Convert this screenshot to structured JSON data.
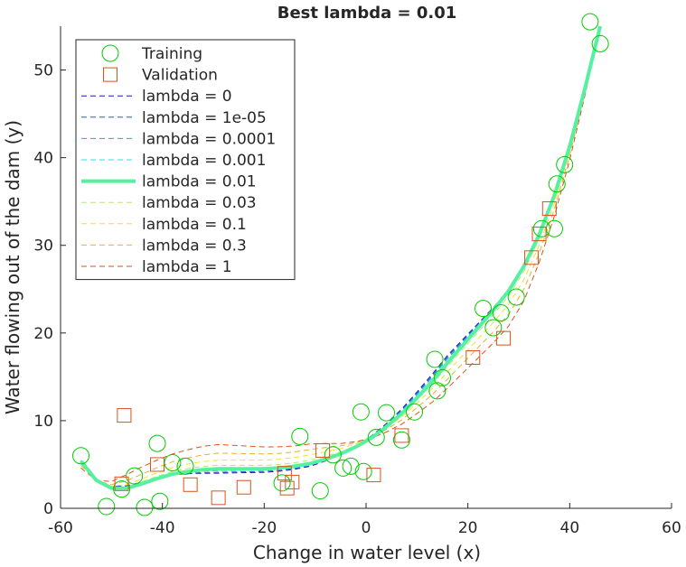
{
  "chart_data": {
    "type": "scatter",
    "title": "Best lambda = 0.01",
    "xlabel": "Change in water level (x)",
    "ylabel": "Water flowing out of the dam (y)",
    "xlim": [
      -60,
      60
    ],
    "ylim": [
      0,
      55
    ],
    "xticks": [
      -60,
      -40,
      -20,
      0,
      20,
      40,
      60
    ],
    "yticks": [
      0,
      10,
      20,
      30,
      40,
      50
    ],
    "grid": false,
    "legend_position": "top-left",
    "series": [
      {
        "name": "Training",
        "kind": "scatter",
        "marker": "circle",
        "color": "#00cc00",
        "points": [
          [
            -56,
            6.0
          ],
          [
            -51,
            0.2
          ],
          [
            -48,
            2.2
          ],
          [
            -45.5,
            3.7
          ],
          [
            -43.5,
            0.1
          ],
          [
            -41,
            7.4
          ],
          [
            -40.5,
            0.8
          ],
          [
            -38,
            5.2
          ],
          [
            -35.5,
            4.8
          ],
          [
            -16.5,
            2.9
          ],
          [
            -13,
            8.2
          ],
          [
            -9,
            2.0
          ],
          [
            -6.5,
            6.1
          ],
          [
            -4.5,
            4.6
          ],
          [
            -3,
            4.8
          ],
          [
            -1,
            11.0
          ],
          [
            -0.5,
            4.2
          ],
          [
            2,
            8.1
          ],
          [
            4,
            10.9
          ],
          [
            7,
            7.8
          ],
          [
            9.5,
            11.0
          ],
          [
            13.5,
            17.0
          ],
          [
            14,
            13.4
          ],
          [
            15,
            14.9
          ],
          [
            23,
            22.8
          ],
          [
            25,
            20.6
          ],
          [
            26.5,
            22.3
          ],
          [
            29.5,
            24.1
          ],
          [
            34.5,
            31.9
          ],
          [
            37,
            31.9
          ],
          [
            37.5,
            37.0
          ],
          [
            39,
            39.2
          ],
          [
            44,
            55.5
          ],
          [
            46,
            53.0
          ]
        ]
      },
      {
        "name": "Validation",
        "kind": "scatter",
        "marker": "square",
        "color": "#d95319",
        "points": [
          [
            -47.5,
            10.6
          ],
          [
            -48,
            2.8
          ],
          [
            -41,
            5.0
          ],
          [
            -34.5,
            2.7
          ],
          [
            -29,
            1.2
          ],
          [
            -24,
            2.4
          ],
          [
            -16,
            4.0
          ],
          [
            -15.5,
            2.3
          ],
          [
            -14.5,
            3.0
          ],
          [
            -8.5,
            6.6
          ],
          [
            1.5,
            3.8
          ],
          [
            7,
            8.3
          ],
          [
            21,
            17.2
          ],
          [
            27,
            19.4
          ],
          [
            32.5,
            28.6
          ],
          [
            34,
            31.3
          ],
          [
            36,
            34.2
          ]
        ]
      },
      {
        "name": "lambda = 0",
        "kind": "line",
        "style": "dashed",
        "color": "#1a1ab8",
        "offset": [
          0,
          0.3,
          -0.5,
          -0.3,
          0.9,
          0,
          0
        ]
      },
      {
        "name": "lambda = 1e-05",
        "kind": "line",
        "style": "dashed",
        "color": "#1f5fd6",
        "offset": [
          0,
          0.2,
          -0.4,
          -0.2,
          0.7,
          0,
          0
        ]
      },
      {
        "name": "lambda = 0.0001",
        "kind": "line",
        "style": "dashed",
        "color": "#1aa7d6",
        "offset": [
          0,
          0.1,
          -0.2,
          -0.1,
          0.5,
          0,
          0
        ]
      },
      {
        "name": "lambda = 0.001",
        "kind": "line",
        "style": "dashed",
        "color": "#33dde6",
        "offset": [
          0,
          0.05,
          -0.1,
          -0.05,
          0.2,
          0,
          0
        ]
      },
      {
        "name": "lambda = 0.01",
        "kind": "line",
        "style": "solid",
        "color": "#55f0a0",
        "offset": [
          0,
          0,
          0,
          0,
          0,
          0,
          0
        ]
      },
      {
        "name": "lambda = 0.03",
        "kind": "line",
        "style": "dashed",
        "color": "#b5e870",
        "offset": [
          -0.1,
          0.2,
          0.4,
          0.4,
          -0.4,
          -0.6,
          0
        ]
      },
      {
        "name": "lambda = 0.1",
        "kind": "line",
        "style": "dashed",
        "color": "#f2e22a",
        "offset": [
          -0.2,
          0.5,
          1.0,
          1.0,
          -1.0,
          -1.6,
          0
        ]
      },
      {
        "name": "lambda = 0.3",
        "kind": "line",
        "style": "dashed",
        "color": "#e8b030",
        "offset": [
          -0.5,
          1.0,
          1.8,
          1.6,
          -1.8,
          -2.8,
          0
        ]
      },
      {
        "name": "lambda = 1",
        "kind": "line",
        "style": "dashed",
        "color": "#d95319",
        "offset": [
          -0.8,
          1.8,
          2.8,
          2.2,
          -2.8,
          -4.2,
          0
        ]
      }
    ],
    "best_curve": {
      "x": [
        -56,
        -53,
        -50,
        -47,
        -44,
        -41,
        -38,
        -35,
        -32,
        -29,
        -26,
        -23,
        -20,
        -17,
        -14,
        -11,
        -8,
        -5,
        -2,
        1,
        4,
        7,
        10,
        13,
        16,
        19,
        22,
        25,
        28,
        31,
        34,
        37,
        40,
        43,
        46
      ],
      "y": [
        5.4,
        3.2,
        2.3,
        2.3,
        2.8,
        3.4,
        3.9,
        4.2,
        4.4,
        4.5,
        4.5,
        4.5,
        4.5,
        4.6,
        4.8,
        5.1,
        5.6,
        6.2,
        7.0,
        8.0,
        9.3,
        10.8,
        12.6,
        14.5,
        16.6,
        18.6,
        20.6,
        22.6,
        24.8,
        27.6,
        31.2,
        35.7,
        41.3,
        47.9,
        55.0
      ]
    },
    "offset_knots_x": [
      -56,
      -46,
      -30,
      -10,
      15,
      30,
      46
    ]
  }
}
